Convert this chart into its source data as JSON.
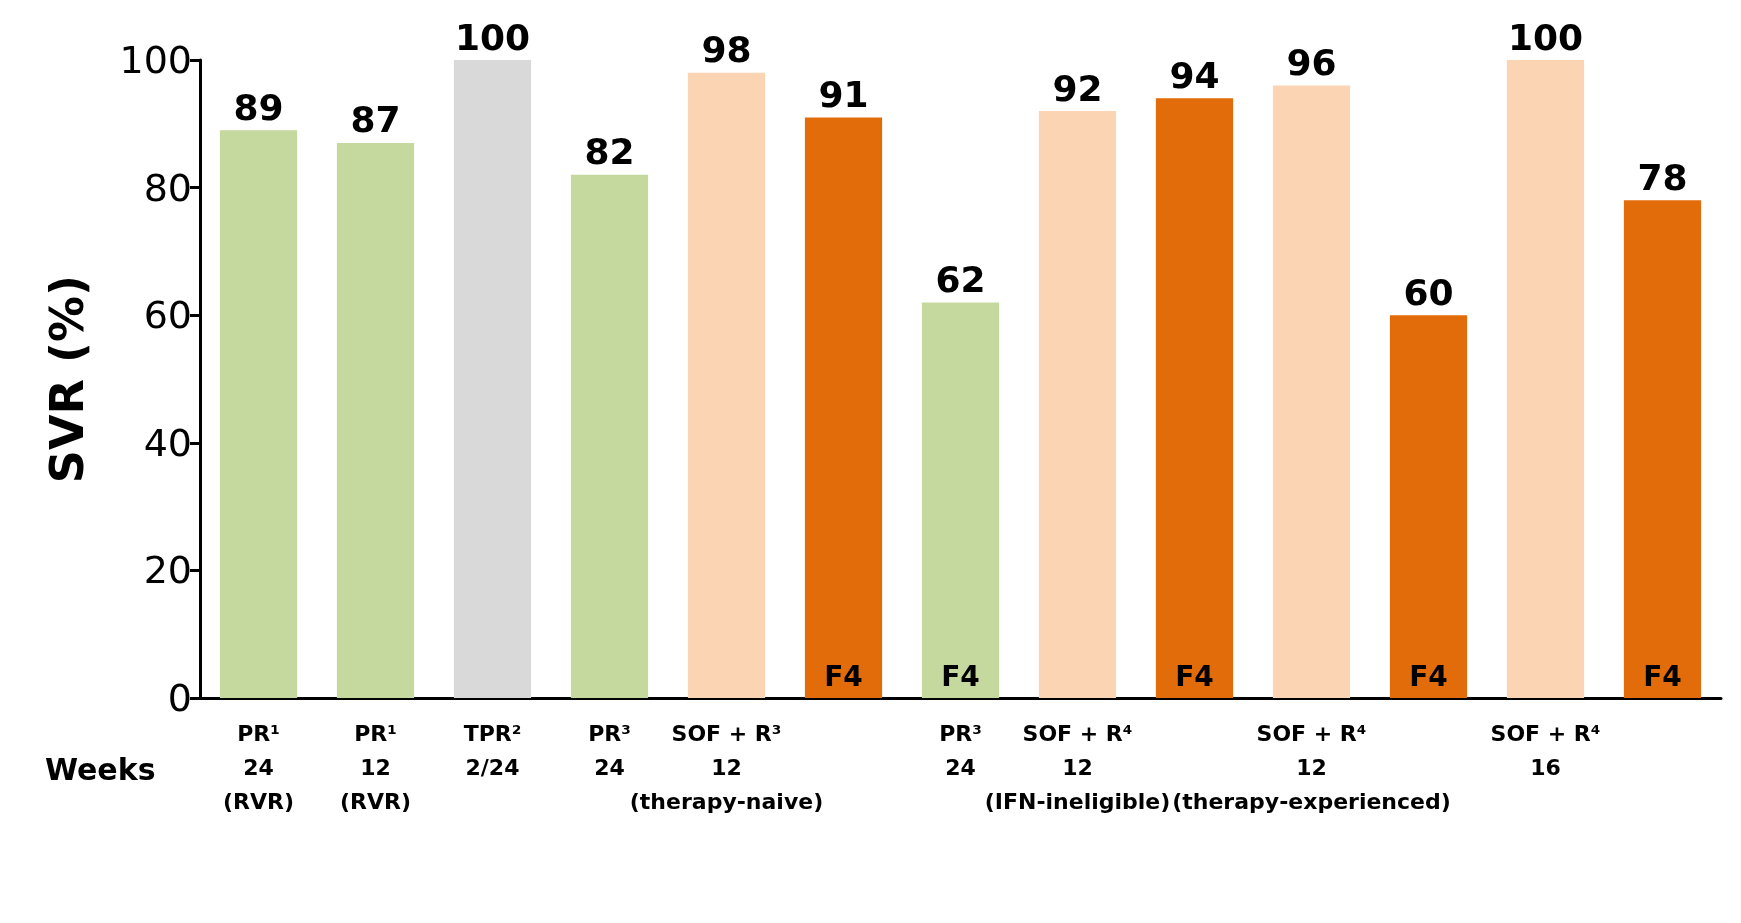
{
  "chart_data": {
    "type": "bar",
    "ylabel": "SVR (%)",
    "categories": [
      "PR¹\n24\n(RVR)",
      "PR¹\n12\n(RVR)",
      "TPR²\n2/24",
      "PR³\n24",
      "SOF + R³\n12\n(therapy-naive)",
      null,
      "PR³\n24",
      "SOF + R⁴\n12\n(IFN-ineligible)",
      null,
      "SOF + R⁴\n12\n(therapy-experienced)",
      null,
      "SOF + R⁴\n16",
      null
    ],
    "series": [
      {
        "values": [
          89,
          87,
          100,
          82,
          98,
          null,
          null,
          92,
          null,
          96,
          null,
          100,
          null
        ],
        "colors": [
          "#c5d89d",
          "#c5d89d",
          "#d9d9d9",
          "#c5d89d",
          "#fbd4b4",
          null,
          null,
          "#fbd4b4",
          null,
          "#fbd4b4",
          null,
          "#fbd4b4",
          null
        ]
      },
      {
        "name": "F4",
        "values": [
          null,
          null,
          null,
          null,
          null,
          91,
          62,
          null,
          94,
          null,
          60,
          null,
          78
        ],
        "colors": [
          null,
          null,
          null,
          null,
          null,
          "#e36c0a",
          "#c5d89d",
          null,
          "#e36c0a",
          null,
          "#e36c0a",
          null,
          "#e36c0a"
        ]
      }
    ],
    "ylim": [
      0,
      100
    ],
    "yticks": [
      0,
      20,
      40,
      60,
      80,
      100
    ],
    "data_labels": true,
    "annotations": [
      "Weeks"
    ]
  }
}
